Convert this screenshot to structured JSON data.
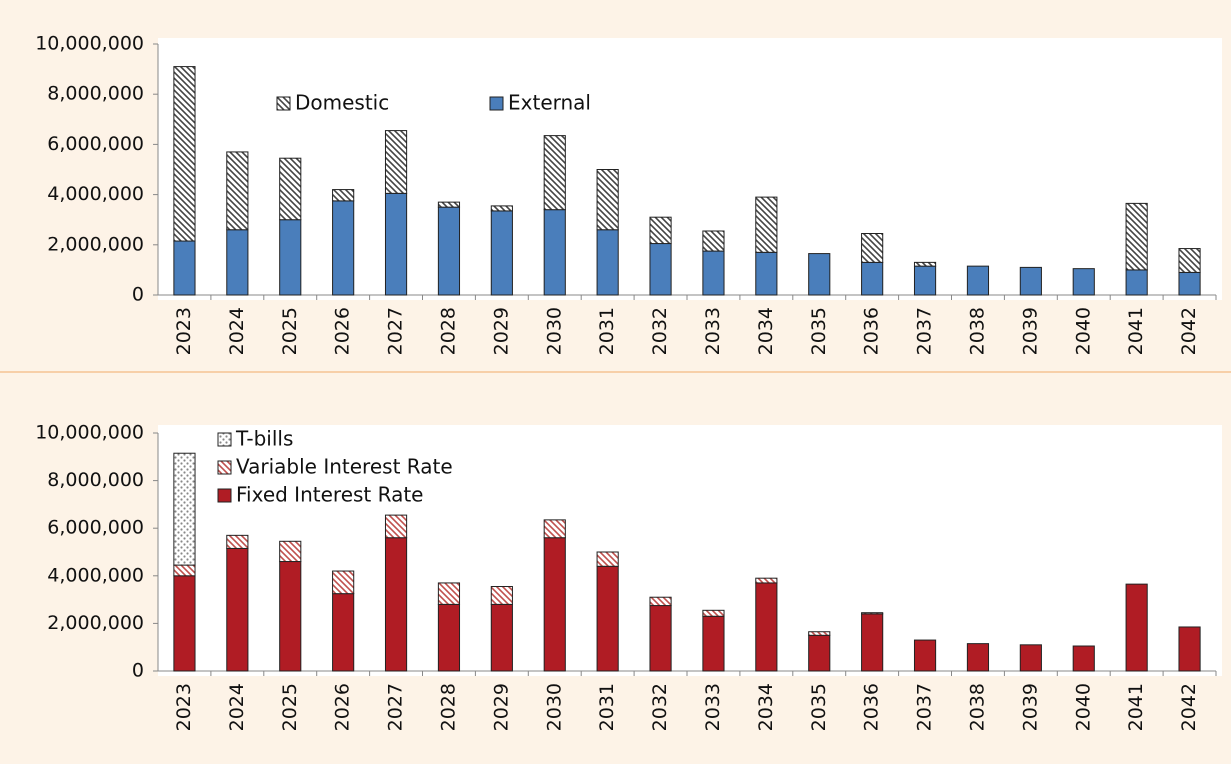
{
  "chart_data": [
    {
      "type": "stacked_bar",
      "categories": [
        "2023",
        "2024",
        "2025",
        "2026",
        "2027",
        "2028",
        "2029",
        "2030",
        "2031",
        "2032",
        "2033",
        "2034",
        "2035",
        "2036",
        "2037",
        "2038",
        "2039",
        "2040",
        "2041",
        "2042"
      ],
      "series": [
        {
          "name": "External",
          "color": "#4a7ebb",
          "pattern": "solid",
          "values": [
            2150000,
            2600000,
            3000000,
            3750000,
            4050000,
            3500000,
            3350000,
            3400000,
            2600000,
            2050000,
            1750000,
            1700000,
            1650000,
            1300000,
            1150000,
            1150000,
            1100000,
            1050000,
            1000000,
            900000
          ]
        },
        {
          "name": "Domestic",
          "color": "#444444",
          "pattern": "hatch",
          "values": [
            6950000,
            3100000,
            2450000,
            450000,
            2500000,
            200000,
            200000,
            2950000,
            2400000,
            1050000,
            800000,
            2200000,
            0,
            1150000,
            150000,
            0,
            0,
            0,
            2650000,
            950000
          ]
        }
      ],
      "ylim": [
        0,
        10000000
      ],
      "yticks": [
        0,
        {
          "value": 2000000,
          "label": "2,000,000"
        },
        {
          "value": 4000000,
          "label": "4,000,000"
        },
        {
          "value": 6000000,
          "label": "6,000,000"
        },
        {
          "value": 8000000,
          "label": "8,000,000"
        },
        {
          "value": 10000000,
          "label": "10,000,000"
        }
      ],
      "legend": "top-center"
    },
    {
      "type": "stacked_bar",
      "categories": [
        "2023",
        "2024",
        "2025",
        "2026",
        "2027",
        "2028",
        "2029",
        "2030",
        "2031",
        "2032",
        "2033",
        "2034",
        "2035",
        "2036",
        "2037",
        "2038",
        "2039",
        "2040",
        "2041",
        "2042"
      ],
      "series": [
        {
          "name": "Fixed Interest Rate",
          "color": "#b01c24",
          "pattern": "solid",
          "values": [
            4000000,
            5150000,
            4600000,
            3250000,
            5600000,
            2800000,
            2800000,
            5600000,
            4400000,
            2750000,
            2300000,
            3700000,
            1500000,
            2400000,
            1300000,
            1150000,
            1100000,
            1050000,
            3650000,
            1850000
          ]
        },
        {
          "name": "Variable Interest Rate",
          "color": "#c0504d",
          "pattern": "hatch",
          "values": [
            450000,
            550000,
            850000,
            950000,
            950000,
            900000,
            750000,
            750000,
            600000,
            350000,
            250000,
            200000,
            150000,
            50000,
            0,
            0,
            0,
            0,
            0,
            0
          ]
        },
        {
          "name": "T-bills",
          "color": "#888888",
          "pattern": "dots",
          "values": [
            4700000,
            0,
            0,
            0,
            0,
            0,
            0,
            0,
            0,
            0,
            0,
            0,
            0,
            0,
            0,
            0,
            0,
            0,
            0,
            0
          ]
        }
      ],
      "ylim": [
        0,
        10000000
      ],
      "yticks": [
        0,
        {
          "value": 2000000,
          "label": "2,000,000"
        },
        {
          "value": 4000000,
          "label": "4,000,000"
        },
        {
          "value": 6000000,
          "label": "6,000,000"
        },
        {
          "value": 8000000,
          "label": "8,000,000"
        },
        {
          "value": 10000000,
          "label": "10,000,000"
        }
      ],
      "legend": "top-left"
    }
  ]
}
